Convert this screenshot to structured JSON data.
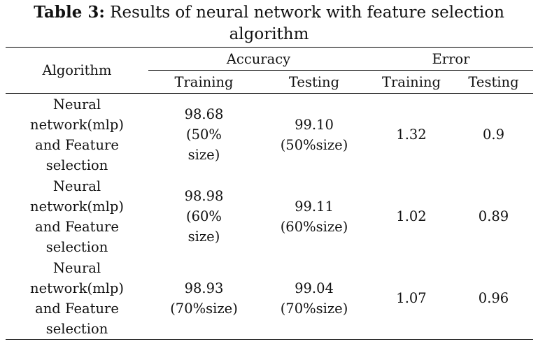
{
  "caption": {
    "label": "Table 3:",
    "text": " Results of neural network with feature selection algorithm"
  },
  "table": {
    "header": {
      "algorithm": "Algorithm",
      "accuracy": "Accuracy",
      "error": "Error",
      "training": "Training",
      "testing": "Testing"
    },
    "rows": [
      {
        "algorithm": "Neural network(mlp) and Feature selection",
        "acc_training": "98.68 (50% size)",
        "acc_testing": "99.10 (50%size)",
        "err_training": "1.32",
        "err_testing": "0.9"
      },
      {
        "algorithm": "Neural network(mlp) and Feature selection",
        "acc_training": "98.98 (60% size)",
        "acc_testing": "99.11 (60%size)",
        "err_training": "1.02",
        "err_testing": "0.89"
      },
      {
        "algorithm": "Neural network(mlp) and Feature selection",
        "acc_training": "98.93 (70%size)",
        "acc_testing": "99.04 (70%size)",
        "err_training": "1.07",
        "err_testing": "0.96"
      }
    ]
  }
}
